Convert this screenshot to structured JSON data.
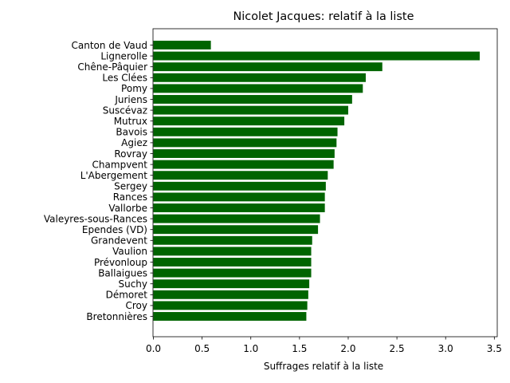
{
  "chart_data": {
    "type": "bar",
    "orientation": "horizontal",
    "title": "Nicolet Jacques: relatif à la liste",
    "xlabel": "Suffrages relatif à la liste",
    "ylabel": "",
    "xlim": [
      0,
      3.52
    ],
    "xticks": [
      "0.0",
      "0.5",
      "1.0",
      "1.5",
      "2.0",
      "2.5",
      "3.0",
      "3.5"
    ],
    "grid": false,
    "bar_color": "#006400",
    "categories": [
      "Canton de Vaud",
      "Lignerolle",
      "Chêne-Pâquier",
      "Les Clées",
      "Pomy",
      "Juriens",
      "Suscévaz",
      "Mutrux",
      "Bavois",
      "Agiez",
      "Rovray",
      "Champvent",
      "L'Abergement",
      "Sergey",
      "Rances",
      "Vallorbe",
      "Valeyres-sous-Rances",
      "Ependes (VD)",
      "Grandevent",
      "Vaulion",
      "Prévonloup",
      "Ballaigues",
      "Suchy",
      "Démoret",
      "Croy",
      "Bretonnières"
    ],
    "values": [
      0.59,
      3.35,
      2.35,
      2.18,
      2.15,
      2.04,
      2.0,
      1.96,
      1.89,
      1.88,
      1.86,
      1.85,
      1.79,
      1.77,
      1.76,
      1.76,
      1.71,
      1.69,
      1.63,
      1.62,
      1.62,
      1.62,
      1.6,
      1.59,
      1.58,
      1.57
    ]
  }
}
